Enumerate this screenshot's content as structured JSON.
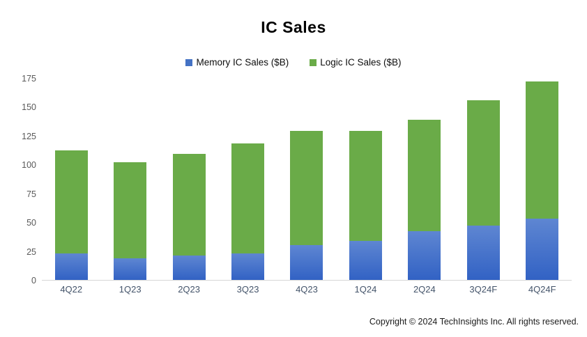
{
  "title": "IC Sales",
  "legend": {
    "memory_label": "Memory IC Sales ($B)",
    "logic_label": "Logic IC Sales ($B)"
  },
  "colors": {
    "memory": "#4472c4",
    "memory_gradient_top": "#5e86d2",
    "memory_gradient_bottom": "#3262c4",
    "logic": "#6aab48",
    "axis_line": "#d6d6d6",
    "y_tick_text": "#595959",
    "x_tick_text": "#44546a"
  },
  "footer": {
    "copyright": "Copyright © 2024 TechInsights Inc.  All rights reserved."
  },
  "chart_data": {
    "type": "bar",
    "stacked": true,
    "title": "IC Sales",
    "categories": [
      "4Q22",
      "1Q23",
      "2Q23",
      "3Q23",
      "4Q23",
      "1Q24",
      "2Q24",
      "3Q24F",
      "4Q24F"
    ],
    "series": [
      {
        "name": "Memory IC Sales ($B)",
        "color": "#4472c4",
        "values": [
          23,
          19,
          21,
          23,
          30,
          34,
          42,
          47,
          53
        ]
      },
      {
        "name": "Logic IC Sales ($B)",
        "color": "#6aab48",
        "values": [
          89,
          83,
          88,
          95,
          99,
          95,
          97,
          109,
          119
        ]
      }
    ],
    "totals": [
      112,
      102,
      109,
      118,
      129,
      129,
      139,
      156,
      172
    ],
    "xlabel": "",
    "ylabel": "",
    "ylim": [
      0,
      175
    ],
    "yticks": [
      0,
      25,
      50,
      75,
      100,
      125,
      150,
      175
    ],
    "grid": false,
    "legend_position": "top-center"
  }
}
